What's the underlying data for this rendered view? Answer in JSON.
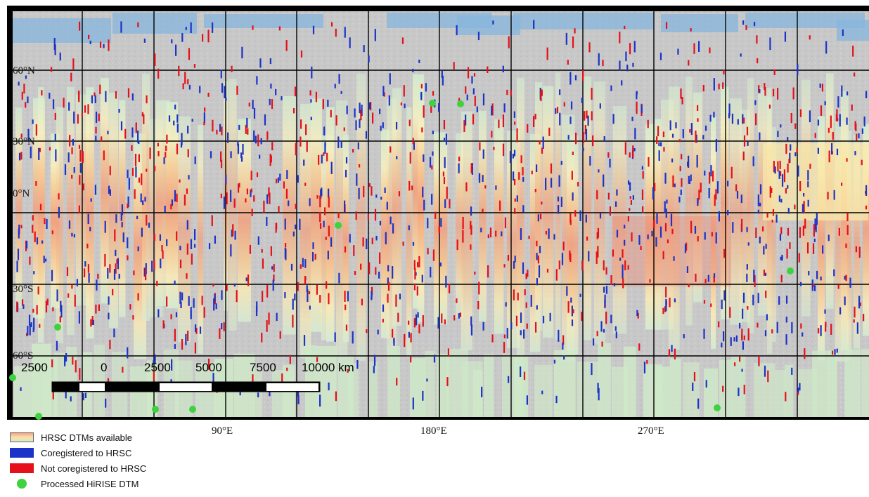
{
  "map": {
    "latitude_labels": [
      "60°N",
      "30°N",
      "0°N",
      "30°S",
      "60°S"
    ],
    "longitude_labels": [
      "90°E",
      "180°E",
      "270°E"
    ],
    "scale_bar": {
      "labels": [
        "2500",
        "0",
        "2500",
        "5000",
        "7500",
        "10000 km"
      ]
    }
  },
  "legend": {
    "items": [
      {
        "label": "HRSC DTMs available",
        "swatch": "gradient"
      },
      {
        "label": "Coregistered to HRSC",
        "swatch": "blue"
      },
      {
        "label": "Not coregistered to HRSC",
        "swatch": "red"
      },
      {
        "label": "Processed HiRISE DTM",
        "swatch": "green-dot"
      }
    ]
  },
  "colors": {
    "coregistered": "#1c33c7",
    "not_coregistered": "#e5101a",
    "hirise_dtm": "#3ed33e",
    "basemap": "#c9c9c9",
    "polar_cap": "#86b5dc"
  }
}
